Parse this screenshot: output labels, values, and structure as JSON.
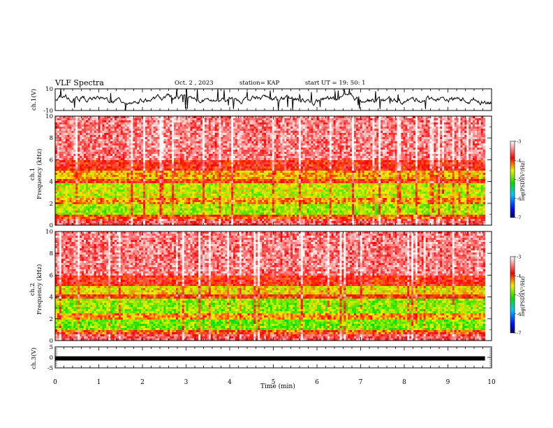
{
  "header": {
    "title": "VLF Spectra",
    "date": "Oct. 2 , 2023",
    "station": "station= KAP",
    "start": "start UT = 19: 50: 1"
  },
  "chart_data": [
    {
      "type": "line",
      "ylabel": "ch.1(V)",
      "ylim": [
        -10,
        10
      ],
      "y_ticks": [
        "10",
        "-10"
      ],
      "description_values": "noisy waveform mostly between -4 and 4",
      "xlim": [
        0,
        10
      ]
    },
    {
      "type": "heatmap",
      "ylabel_line1": "ch.1",
      "ylabel_line2": "Frequency (kHz)",
      "ylim": [
        0,
        10
      ],
      "y_ticks": [
        "0",
        "2",
        "4",
        "6",
        "8",
        "10"
      ],
      "x_extent_min": [
        0,
        9.85
      ],
      "colorbar": {
        "label": "log(PSD)(V²/Hz)",
        "range": [
          -7,
          -3
        ],
        "ticks": [
          "-3",
          "-4",
          "-5",
          "-6",
          "-7"
        ]
      }
    },
    {
      "type": "heatmap",
      "ylabel_line1": "ch.2",
      "ylabel_line2": "Frequency (kHz)",
      "ylim": [
        0,
        10
      ],
      "y_ticks": [
        "0",
        "2",
        "4",
        "6",
        "8",
        "10"
      ],
      "x_extent_min": [
        0,
        9.85
      ],
      "colorbar": {
        "label": "log(PSD)(V²/Hz)",
        "range": [
          -7,
          -3
        ],
        "ticks": [
          "-3",
          "-4",
          "-5",
          "-6",
          "-7"
        ]
      }
    },
    {
      "type": "line",
      "ylabel": "ch.3(V)",
      "ylim": [
        -5,
        5
      ],
      "y_ticks": [
        "5",
        "0",
        "-5"
      ],
      "level": -0.5,
      "xlim": [
        0,
        10
      ],
      "xlabel": "Time (min)",
      "x_ticks": [
        "0",
        "1",
        "2",
        "3",
        "4",
        "5",
        "6",
        "7",
        "8",
        "9",
        "10"
      ]
    }
  ],
  "colors": {
    "low": "#000080",
    "mid_low": "#0040ff",
    "mid": "#00e000",
    "mid_high": "#f0f000",
    "high": "#ff0000",
    "top": "#ffffff"
  }
}
